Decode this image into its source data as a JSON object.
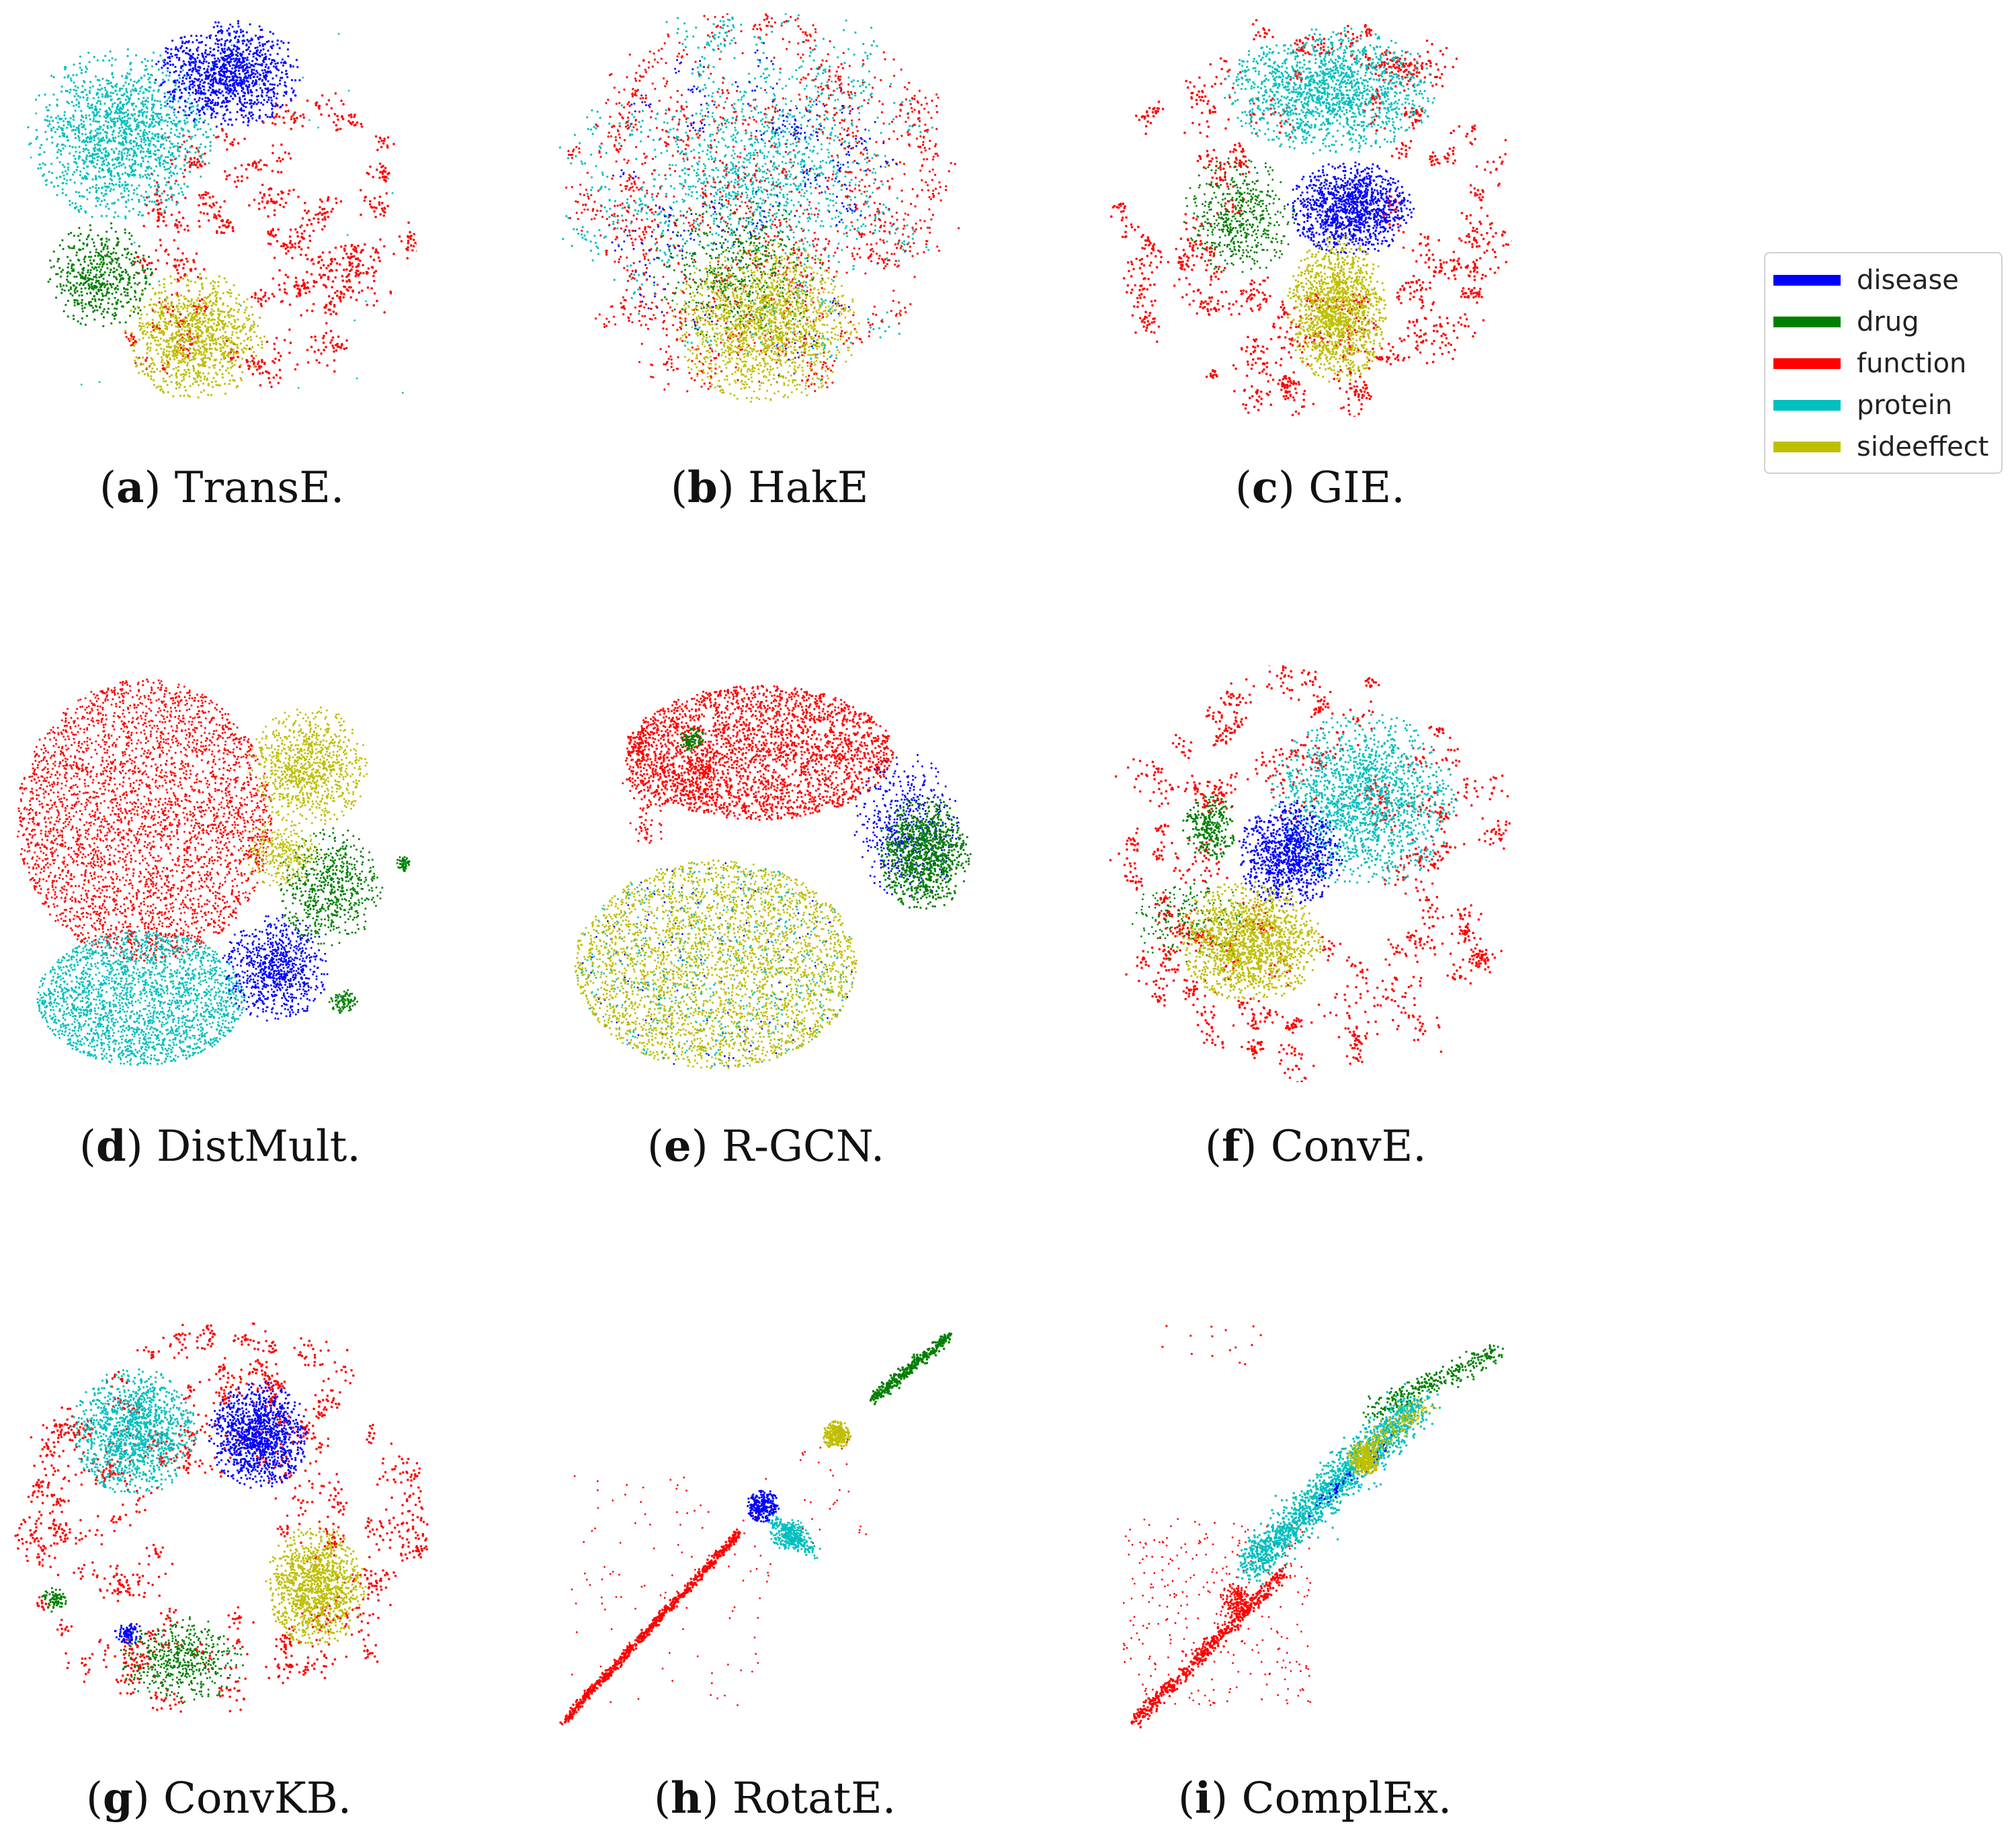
{
  "legend": {
    "entries": [
      {
        "label": "disease",
        "color": "#0000ff"
      },
      {
        "label": "drug",
        "color": "#008000"
      },
      {
        "label": "function",
        "color": "#ff0000"
      },
      {
        "label": "protein",
        "color": "#00bfbf"
      },
      {
        "label": "sideeffect",
        "color": "#bfbf00"
      }
    ]
  },
  "chart_data": [
    {
      "type": "scatter",
      "letter": "a",
      "title": " TransE.",
      "series": [
        "disease",
        "drug",
        "function",
        "protein",
        "sideeffect"
      ]
    },
    {
      "type": "scatter",
      "letter": "b",
      "title": " HakE",
      "series": [
        "disease",
        "drug",
        "function",
        "protein",
        "sideeffect"
      ]
    },
    {
      "type": "scatter",
      "letter": "c",
      "title": " GIE.",
      "series": [
        "disease",
        "drug",
        "function",
        "protein",
        "sideeffect"
      ]
    },
    {
      "type": "scatter",
      "letter": "d",
      "title": " DistMult.",
      "series": [
        "disease",
        "drug",
        "function",
        "protein",
        "sideeffect"
      ]
    },
    {
      "type": "scatter",
      "letter": "e",
      "title": " R-GCN.",
      "series": [
        "disease",
        "drug",
        "function",
        "protein",
        "sideeffect"
      ]
    },
    {
      "type": "scatter",
      "letter": "f",
      "title": " ConvE.",
      "series": [
        "disease",
        "drug",
        "function",
        "protein",
        "sideeffect"
      ]
    },
    {
      "type": "scatter",
      "letter": "g",
      "title": " ConvKB.",
      "series": [
        "disease",
        "drug",
        "function",
        "protein",
        "sideeffect"
      ]
    },
    {
      "type": "scatter",
      "letter": "h",
      "title": " RotatE.",
      "series": [
        "disease",
        "drug",
        "function",
        "protein",
        "sideeffect"
      ]
    },
    {
      "type": "scatter",
      "letter": "i",
      "title": " ComplEx.",
      "series": [
        "disease",
        "drug",
        "function",
        "protein",
        "sideeffect"
      ]
    }
  ]
}
